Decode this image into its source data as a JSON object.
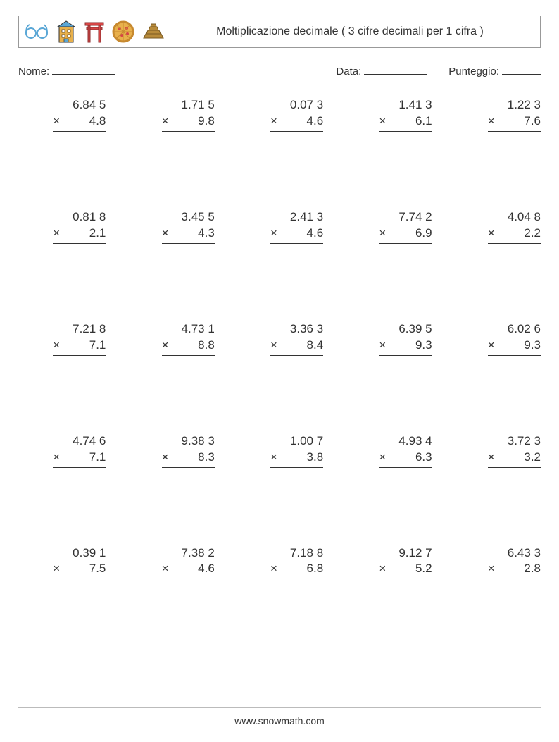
{
  "header": {
    "title": "Moltiplicazione decimale ( 3 cifre decimali per 1 cifra )"
  },
  "labels": {
    "name": "Nome:",
    "date": "Data:",
    "score": "Punteggio:"
  },
  "op_symbol": "×",
  "problems": [
    {
      "a": "6.84 5",
      "b": "4.8"
    },
    {
      "a": "1.71 5",
      "b": "9.8"
    },
    {
      "a": "0.07 3",
      "b": "4.6"
    },
    {
      "a": "1.41 3",
      "b": "6.1"
    },
    {
      "a": "1.22 3",
      "b": "7.6"
    },
    {
      "a": "0.81 8",
      "b": "2.1"
    },
    {
      "a": "3.45 5",
      "b": "4.3"
    },
    {
      "a": "2.41 3",
      "b": "4.6"
    },
    {
      "a": "7.74 2",
      "b": "6.9"
    },
    {
      "a": "4.04 8",
      "b": "2.2"
    },
    {
      "a": "7.21 8",
      "b": "7.1"
    },
    {
      "a": "4.73 1",
      "b": "8.8"
    },
    {
      "a": "3.36 3",
      "b": "8.4"
    },
    {
      "a": "6.39 5",
      "b": "9.3"
    },
    {
      "a": "6.02 6",
      "b": "9.3"
    },
    {
      "a": "4.74 6",
      "b": "7.1"
    },
    {
      "a": "9.38 3",
      "b": "8.3"
    },
    {
      "a": "1.00 7",
      "b": "3.8"
    },
    {
      "a": "4.93 4",
      "b": "6.3"
    },
    {
      "a": "3.72 3",
      "b": "3.2"
    },
    {
      "a": "0.39 1",
      "b": "7.5"
    },
    {
      "a": "7.38 2",
      "b": "4.6"
    },
    {
      "a": "7.18 8",
      "b": "6.8"
    },
    {
      "a": "9.12 7",
      "b": "5.2"
    },
    {
      "a": "6.43 3",
      "b": "2.8"
    }
  ],
  "footer": "www.snowmath.com",
  "icon_colors": {
    "glasses": "#5aa7d6",
    "building_body": "#e8b04b",
    "building_roof": "#5aa7d6",
    "torii": "#d64545",
    "pizza": "#e8b04b",
    "pizza_crust": "#c7892f",
    "pyramid": "#b88b3a"
  }
}
